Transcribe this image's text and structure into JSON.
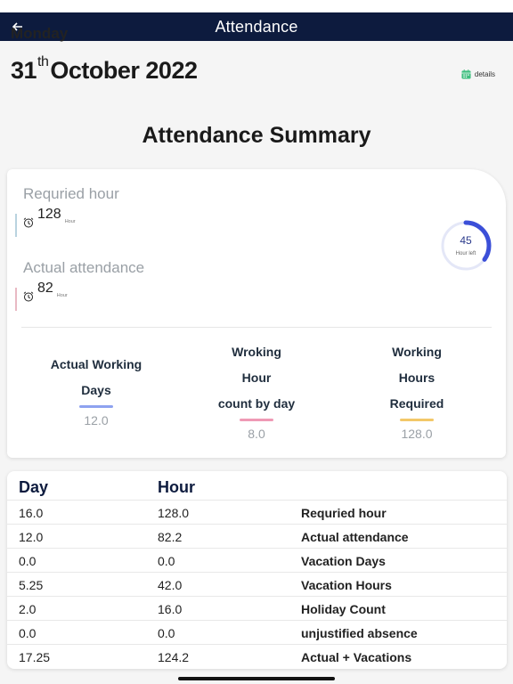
{
  "header": {
    "title": "Attendance",
    "back_icon": "arrow-left-icon"
  },
  "date": {
    "weekday": "Monday",
    "day": "31",
    "suffix": "th",
    "month_year": "October 2022"
  },
  "details_label": "details",
  "summary_title": "Attendance Summary",
  "required": {
    "label": "Requried hour",
    "value": "128",
    "unit": "Hour",
    "color": "#b9d3df"
  },
  "actual": {
    "label": "Actual attendance",
    "value": "82",
    "unit": "Hour",
    "color": "#e9b9c4"
  },
  "gauge": {
    "value": "45",
    "label": "Hour left",
    "fraction": 0.35,
    "color": "#3b4fd8"
  },
  "stats": [
    {
      "label_lines": [
        "Actual Working",
        "Days"
      ],
      "value": "12.0",
      "color": "#8ea2f0"
    },
    {
      "label_lines": [
        "Wroking",
        "Hour",
        "count by day"
      ],
      "value": "8.0",
      "color": "#ef9ab5"
    },
    {
      "label_lines": [
        "Working",
        "Hours",
        "Required"
      ],
      "value": "128.0",
      "color": "#f3c869"
    }
  ],
  "table": {
    "col_day": "Day",
    "col_hour": "Hour",
    "rows": [
      {
        "day": "16.0",
        "hour": "128.0",
        "desc": "Requried hour"
      },
      {
        "day": "12.0",
        "hour": "82.2",
        "desc": "Actual attendance"
      },
      {
        "day": "0.0",
        "hour": "0.0",
        "desc": "Vacation Days"
      },
      {
        "day": "5.25",
        "hour": "42.0",
        "desc": "Vacation Hours"
      },
      {
        "day": "2.0",
        "hour": "16.0",
        "desc": "Holiday Count"
      },
      {
        "day": "0.0",
        "hour": "0.0",
        "desc": "unjustified absence"
      },
      {
        "day": "17.25",
        "hour": "124.2",
        "desc": "Actual + Vacations"
      }
    ]
  },
  "colors": {
    "appbar": "#0d1b3e",
    "details_icon": "#3fbf7f"
  }
}
